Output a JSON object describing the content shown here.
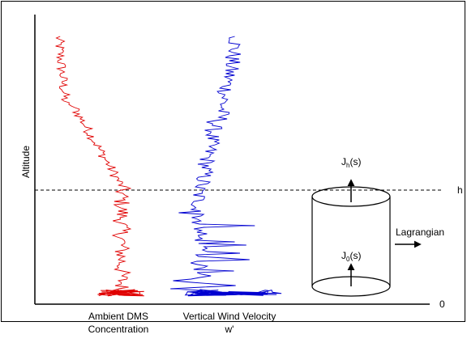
{
  "axis": {
    "label": "Altitude",
    "top_mark": "h",
    "bottom_mark": "0"
  },
  "profiles": [
    {
      "line1": "Ambient DMS",
      "line2": "Concentration"
    },
    {
      "line1": "Vertical Wind Velocity",
      "line2": "w'"
    }
  ],
  "fluxes": [
    {
      "base": "J",
      "sub": "h",
      "tail": "(s)"
    },
    {
      "base": "J",
      "sub": "0",
      "tail": "(s)"
    }
  ],
  "lagrangian": "Lagrangian"
}
